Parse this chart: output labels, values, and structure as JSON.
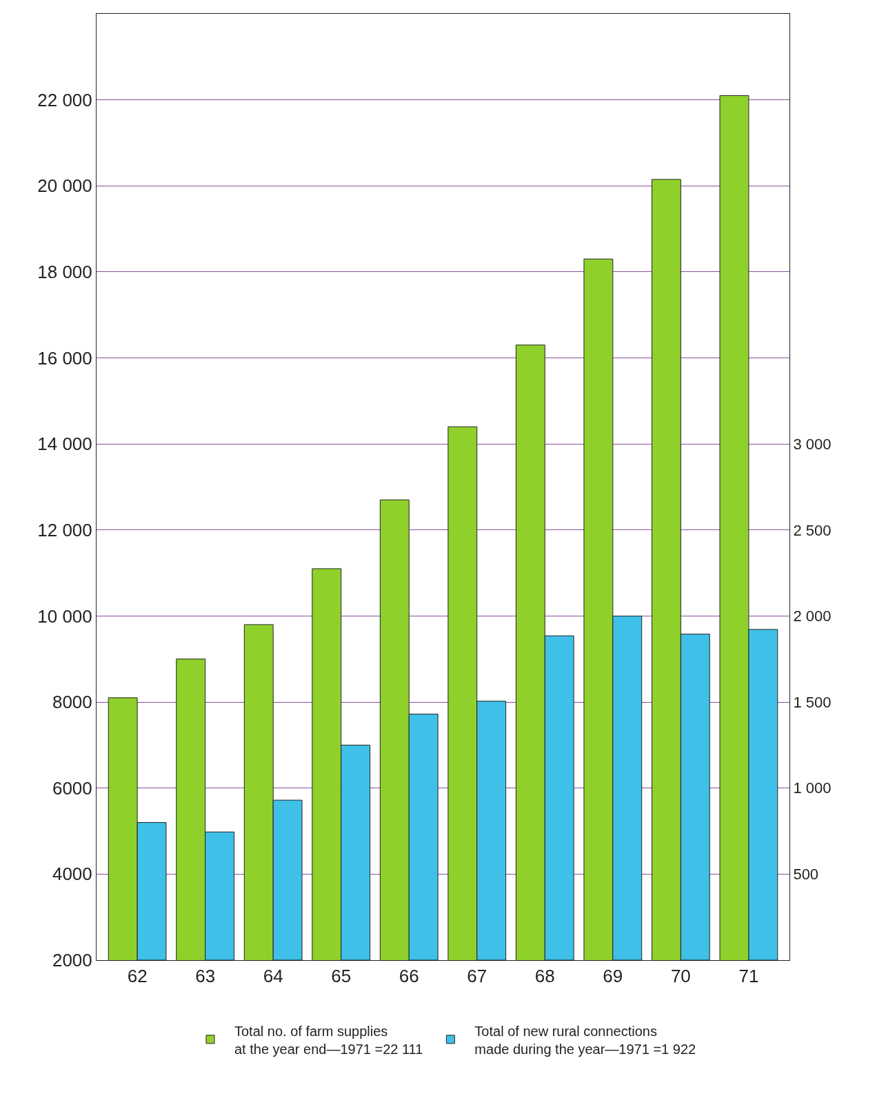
{
  "chart_data": {
    "type": "bar",
    "categories": [
      "62",
      "63",
      "64",
      "65",
      "66",
      "67",
      "68",
      "69",
      "70",
      "71"
    ],
    "series": [
      {
        "name": "Total no. of farm supplies\nat the year end—1971 =22 111",
        "color": "#8fd12a",
        "values": [
          8100,
          9000,
          9800,
          11100,
          12700,
          14400,
          16300,
          18300,
          20150,
          22100
        ]
      },
      {
        "name": "Total of new rural connections\nmade during the year—1971 =1 922",
        "color": "#3fc0e8",
        "axis": "y2",
        "values": [
          800,
          745,
          930,
          1250,
          1430,
          1505,
          1885,
          2000,
          1895,
          1922
        ]
      }
    ],
    "ylim": [
      2000,
      24000
    ],
    "yticks": [
      {
        "value": 2000,
        "label": "2000"
      },
      {
        "value": 4000,
        "label": "4000"
      },
      {
        "value": 6000,
        "label": "6000"
      },
      {
        "value": 8000,
        "label": "8000"
      },
      {
        "value": 10000,
        "label": "10 000"
      },
      {
        "value": 12000,
        "label": "12 000"
      },
      {
        "value": 14000,
        "label": "14 000"
      },
      {
        "value": 16000,
        "label": "16 000"
      },
      {
        "value": 18000,
        "label": "18 000"
      },
      {
        "value": 20000,
        "label": "20 000"
      },
      {
        "value": 22000,
        "label": "22 000"
      }
    ],
    "y2lim": [
      0,
      5500
    ],
    "y2ticks": [
      500,
      {
        "value": 1000,
        "label": "1 000"
      },
      {
        "value": 1500,
        "label": "1 500"
      },
      {
        "value": 2000,
        "label": "2 000"
      },
      {
        "value": 2500,
        "label": "2 500"
      },
      {
        "value": 3000,
        "label": "3 000"
      }
    ],
    "grid": "y",
    "legend": "bottom"
  }
}
